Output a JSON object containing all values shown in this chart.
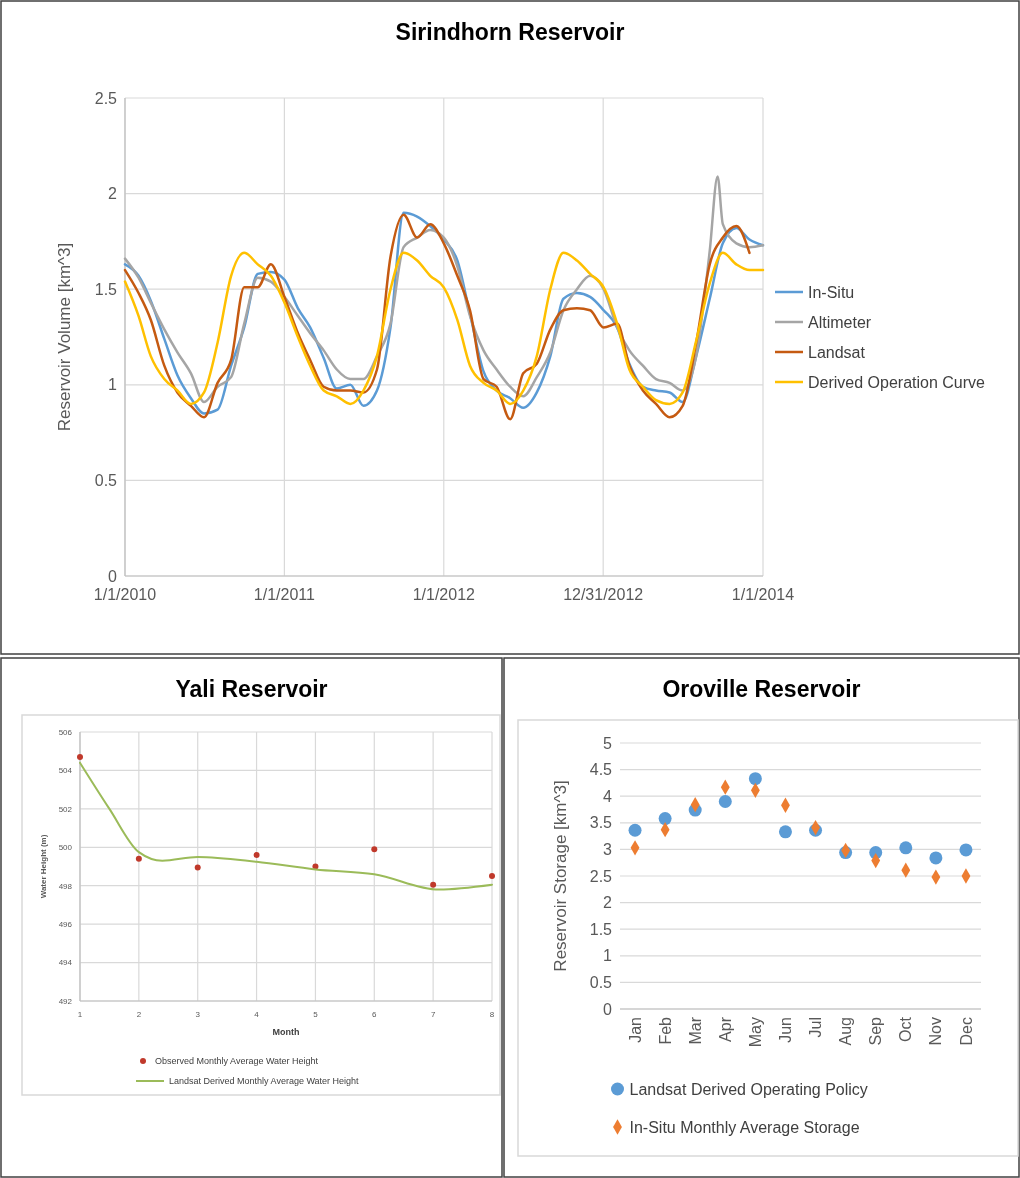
{
  "chart_data": [
    {
      "type": "line",
      "title": "Sirindhorn Reservoir",
      "ylabel": "Reservoir Volume [km^3]",
      "x": [
        "2010-01-01",
        "2010-02-01",
        "2010-03-01",
        "2010-04-01",
        "2010-05-01",
        "2010-06-01",
        "2010-07-01",
        "2010-08-01",
        "2010-09-01",
        "2010-10-01",
        "2010-11-01",
        "2010-12-01",
        "2011-01-01",
        "2011-02-01",
        "2011-03-01",
        "2011-04-01",
        "2011-05-01",
        "2011-06-01",
        "2011-07-01",
        "2011-08-01",
        "2011-09-01",
        "2011-10-01",
        "2011-11-01",
        "2011-12-01",
        "2012-01-01",
        "2012-02-01",
        "2012-03-01",
        "2012-04-01",
        "2012-05-01",
        "2012-06-01",
        "2012-07-01",
        "2012-08-01",
        "2012-09-01",
        "2012-10-01",
        "2012-11-01",
        "2012-12-01",
        "2013-01-01",
        "2013-02-01",
        "2013-03-01",
        "2013-04-01",
        "2013-05-01",
        "2013-06-01",
        "2013-07-01",
        "2013-08-01",
        "2013-09-01",
        "2013-10-01",
        "2013-11-01",
        "2013-12-01",
        "2014-01-01"
      ],
      "series": [
        {
          "name": "In-Situ",
          "color": "#5b9bd5",
          "values": [
            1.63,
            1.57,
            1.44,
            1.24,
            1.05,
            0.93,
            0.85,
            0.87,
            1.1,
            1.3,
            1.58,
            1.59,
            1.55,
            1.4,
            1.3,
            1.14,
            0.98,
            1.0,
            0.89,
            0.97,
            1.3,
            1.9,
            1.88,
            1.83,
            1.76,
            1.65,
            1.37,
            1.07,
            0.97,
            0.93,
            0.88,
            0.96,
            1.15,
            1.45,
            1.48,
            1.46,
            1.39,
            1.3,
            1.11,
            0.99,
            0.97,
            0.96,
            0.91,
            1.15,
            1.45,
            1.74,
            1.82,
            1.76,
            1.73
          ]
        },
        {
          "name": "Altimeter",
          "color": "#a5a5a5",
          "x": [
            "2010-01-01",
            "2010-02-01",
            "2010-03-01",
            "2010-04-01",
            "2010-05-01",
            "2010-06-01",
            "2010-07-01",
            "2010-08-01",
            "2010-09-01",
            "2010-10-01",
            "2010-11-01",
            "2010-12-01",
            "2011-01-01",
            "2011-02-01",
            "2011-03-01",
            "2011-04-01",
            "2011-05-01",
            "2011-06-01",
            "2011-07-01",
            "2011-08-01",
            "2011-09-01",
            "2011-10-01",
            "2011-11-01",
            "2011-12-01",
            "2012-01-01",
            "2012-02-01",
            "2012-03-01",
            "2012-04-01",
            "2012-05-01",
            "2012-06-01",
            "2012-07-01",
            "2012-08-01",
            "2012-09-01",
            "2012-10-01",
            "2012-11-01",
            "2012-12-01",
            "2013-01-01",
            "2013-02-01",
            "2013-03-01",
            "2013-04-01",
            "2013-05-01",
            "2013-06-01",
            "2013-07-01",
            "2013-08-01",
            "2013-09-01",
            "2013-09-19",
            "2013-10-01",
            "2013-11-01",
            "2013-12-01",
            "2014-01-01"
          ],
          "values": [
            1.66,
            1.56,
            1.43,
            1.29,
            1.17,
            1.06,
            0.91,
            0.99,
            1.04,
            1.32,
            1.56,
            1.54,
            1.46,
            1.36,
            1.27,
            1.18,
            1.08,
            1.03,
            1.03,
            1.15,
            1.32,
            1.72,
            1.77,
            1.81,
            1.77,
            1.62,
            1.36,
            1.18,
            1.08,
            0.99,
            0.94,
            1.04,
            1.17,
            1.39,
            1.5,
            1.57,
            1.5,
            1.3,
            1.18,
            1.1,
            1.03,
            1.01,
            0.97,
            1.15,
            1.7,
            2.09,
            1.84,
            1.74,
            1.72,
            1.73
          ]
        },
        {
          "name": "Landsat",
          "color": "#c55a11",
          "values": [
            1.6,
            1.48,
            1.34,
            1.1,
            0.96,
            0.89,
            0.83,
            1.01,
            1.13,
            1.51,
            1.51,
            1.63,
            1.46,
            1.27,
            1.13,
            0.99,
            0.97,
            0.97,
            0.96,
            1.08,
            1.67,
            1.89,
            1.77,
            1.84,
            1.74,
            1.57,
            1.39,
            1.03,
            0.99,
            0.82,
            1.06,
            1.11,
            1.29,
            1.39,
            1.4,
            1.39,
            1.3,
            1.32,
            1.1,
            0.97,
            0.9,
            0.83,
            0.89,
            1.22,
            1.63,
            1.77,
            1.83,
            1.69,
            null
          ]
        },
        {
          "name": "Derived Operation Curve",
          "color": "#ffc000",
          "values": [
            1.54,
            1.36,
            1.15,
            1.03,
            0.97,
            0.9,
            0.96,
            1.22,
            1.57,
            1.69,
            1.63,
            1.57,
            1.43,
            1.25,
            1.1,
            0.97,
            0.94,
            0.9,
            0.97,
            1.15,
            1.5,
            1.69,
            1.65,
            1.57,
            1.51,
            1.34,
            1.1,
            1.01,
            0.97,
            0.9,
            0.97,
            1.15,
            1.5,
            1.69,
            1.65,
            1.58,
            1.51,
            1.32,
            1.08,
            0.99,
            0.92,
            0.9,
            0.96,
            1.23,
            1.53,
            1.69,
            1.63,
            1.6,
            1.6
          ]
        }
      ],
      "xlim": [
        "2010-01-01",
        "2014-01-01"
      ],
      "xticks": [
        {
          "value": "2010-01-01",
          "label": "1/1/2010"
        },
        {
          "value": "2011-01-01",
          "label": "1/1/2011"
        },
        {
          "value": "2012-01-01",
          "label": "1/1/2012"
        },
        {
          "value": "2012-12-31",
          "label": "12/31/2012"
        },
        {
          "value": "2014-01-01",
          "label": "1/1/2014"
        }
      ],
      "ylim": [
        0,
        2.5
      ],
      "yticks": [
        0,
        0.5,
        1,
        1.5,
        2,
        2.5
      ],
      "grid": true,
      "legend": "right",
      "line_style": "solid"
    },
    {
      "type": "scatter",
      "title": "Yali Reservoir",
      "xlabel": "Month",
      "ylabel": "Water Height (m)",
      "x": [
        1,
        2,
        3,
        4,
        5,
        6,
        7,
        8
      ],
      "series": [
        {
          "name": "Observed Monthly Average Water Height",
          "color": "#c0392b",
          "marker": "circle",
          "values": [
            504.7,
            499.4,
            498.95,
            499.6,
            499.0,
            499.9,
            498.05,
            498.5
          ]
        },
        {
          "name": "Landsat Derived Monthly Average Water Height",
          "type": "line",
          "color": "#9bbb59",
          "marker": "none",
          "x": [
            1,
            1.5,
            2,
            2.4,
            3,
            4,
            5,
            6,
            7.1,
            8
          ],
          "values": [
            504.4,
            502.0,
            499.75,
            499.3,
            499.5,
            499.25,
            498.85,
            498.6,
            497.8,
            498.05
          ]
        }
      ],
      "xlim": [
        1,
        8
      ],
      "xticks": [
        1,
        2,
        3,
        4,
        5,
        6,
        7,
        8
      ],
      "ylim": [
        492,
        506
      ],
      "yticks": [
        492,
        494,
        496,
        498,
        500,
        502,
        504,
        506
      ],
      "grid": true,
      "legend": "bottom"
    },
    {
      "type": "scatter",
      "title": "Oroville Reservoir",
      "ylabel": "Reservoir Storage [km^3]",
      "categories": [
        "Jan",
        "Feb",
        "Mar",
        "Apr",
        "May",
        "Jun",
        "Jul",
        "Aug",
        "Sep",
        "Oct",
        "Nov",
        "Dec"
      ],
      "series": [
        {
          "name": "Landsat Derived Operating Policy",
          "color": "#5b9bd5",
          "marker": "circle",
          "values": [
            3.36,
            3.58,
            3.74,
            3.9,
            4.33,
            3.33,
            3.36,
            2.94,
            2.94,
            3.03,
            2.84,
            2.99
          ]
        },
        {
          "name": "In-Situ Monthly Average Storage",
          "color": "#ed7d31",
          "marker": "diamond",
          "values": [
            3.03,
            3.37,
            3.84,
            4.17,
            4.11,
            3.83,
            3.41,
            2.98,
            2.79,
            2.61,
            2.48,
            2.5
          ]
        }
      ],
      "ylim": [
        0,
        5
      ],
      "yticks": [
        0,
        0.5,
        1,
        1.5,
        2,
        2.5,
        3,
        3.5,
        4,
        4.5,
        5
      ],
      "grid": "y",
      "legend": "bottom"
    }
  ]
}
